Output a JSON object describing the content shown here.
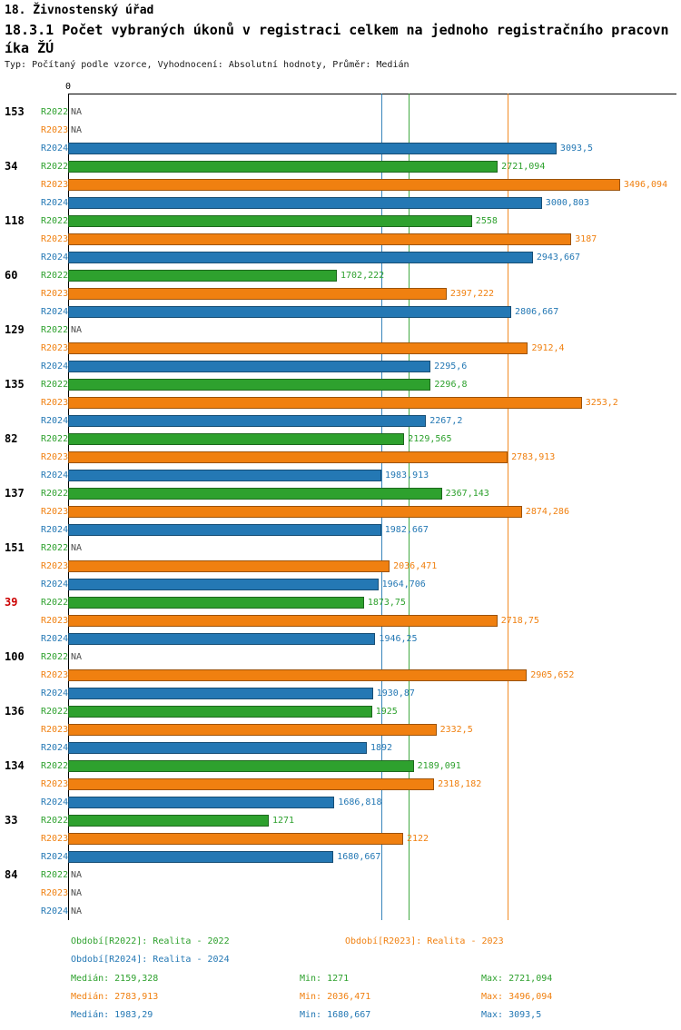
{
  "title": "18. Živnostenský úřad",
  "chart_title": "18.3.1 Počet vybraných úkonů v registraci celkem na jednoho registračního pracovníka ŽÚ",
  "meta": "Typ: Počítaný podle vzorce, Vyhodnocení: Absolutní hodnoty, Průměr: Medián",
  "colors": {
    "r2022": "#2EA12E",
    "r2023": "#F08010",
    "r2024": "#2478B4",
    "highlight": "#CC0000",
    "na": "#4D4D4D",
    "axis": "#000000"
  },
  "chart_data": {
    "type": "bar",
    "orientation": "horizontal",
    "origin_label": "0",
    "xlim": [
      0,
      3853
    ],
    "grid": "median-lines-only",
    "legend_position": "bottom",
    "series": [
      "R2022",
      "R2023",
      "R2024"
    ],
    "series_color_keys": [
      "r2022",
      "r2023",
      "r2024"
    ],
    "groups": [
      {
        "label": "153",
        "highlight": false,
        "values": [
          null,
          null,
          3093.5
        ],
        "displays": [
          "NA",
          "NA",
          "3093,5"
        ]
      },
      {
        "label": "34",
        "highlight": false,
        "values": [
          2721.094,
          3496.094,
          3000.803
        ],
        "displays": [
          "2721,094",
          "3496,094",
          "3000,803"
        ]
      },
      {
        "label": "118",
        "highlight": false,
        "values": [
          2558,
          3187,
          2943.667
        ],
        "displays": [
          "2558",
          "3187",
          "2943,667"
        ]
      },
      {
        "label": "60",
        "highlight": false,
        "values": [
          1702.222,
          2397.222,
          2806.667
        ],
        "displays": [
          "1702,222",
          "2397,222",
          "2806,667"
        ]
      },
      {
        "label": "129",
        "highlight": false,
        "values": [
          null,
          2912.4,
          2295.6
        ],
        "displays": [
          "NA",
          "2912,4",
          "2295,6"
        ]
      },
      {
        "label": "135",
        "highlight": false,
        "values": [
          2296.8,
          3253.2,
          2267.2
        ],
        "displays": [
          "2296,8",
          "3253,2",
          "2267,2"
        ]
      },
      {
        "label": "82",
        "highlight": false,
        "values": [
          2129.565,
          2783.913,
          1983.913
        ],
        "displays": [
          "2129,565",
          "2783,913",
          "1983,913"
        ]
      },
      {
        "label": "137",
        "highlight": false,
        "values": [
          2367.143,
          2874.286,
          1982.667
        ],
        "displays": [
          "2367,143",
          "2874,286",
          "1982,667"
        ]
      },
      {
        "label": "151",
        "highlight": false,
        "values": [
          null,
          2036.471,
          1964.706
        ],
        "displays": [
          "NA",
          "2036,471",
          "1964,706"
        ]
      },
      {
        "label": "39",
        "highlight": true,
        "values": [
          1873.75,
          2718.75,
          1946.25
        ],
        "displays": [
          "1873,75",
          "2718,75",
          "1946,25"
        ]
      },
      {
        "label": "100",
        "highlight": false,
        "values": [
          null,
          2905.652,
          1930.87
        ],
        "displays": [
          "NA",
          "2905,652",
          "1930,87"
        ]
      },
      {
        "label": "136",
        "highlight": false,
        "values": [
          1925,
          2332.5,
          1892
        ],
        "displays": [
          "1925",
          "2332,5",
          "1892"
        ]
      },
      {
        "label": "134",
        "highlight": false,
        "values": [
          2189.091,
          2318.182,
          1686.818
        ],
        "displays": [
          "2189,091",
          "2318,182",
          "1686,818"
        ]
      },
      {
        "label": "33",
        "highlight": false,
        "values": [
          1271,
          2122,
          1680.667
        ],
        "displays": [
          "1271",
          "2122",
          "1680,667"
        ]
      },
      {
        "label": "84",
        "highlight": false,
        "values": [
          null,
          null,
          null
        ],
        "displays": [
          "NA",
          "NA",
          "NA"
        ]
      }
    ],
    "median_lines": [
      {
        "series": "R2022",
        "value": 2159.328,
        "color_key": "r2022"
      },
      {
        "series": "R2023",
        "value": 2783.913,
        "color_key": "r2023"
      },
      {
        "series": "R2024",
        "value": 1983.29,
        "color_key": "r2024"
      }
    ],
    "legend": [
      {
        "label": "Období[R2022]: Realita - 2022",
        "color_key": "r2022"
      },
      {
        "label": "Období[R2023]: Realita - 2023",
        "color_key": "r2023"
      },
      {
        "label": "Období[R2024]: Realita - 2024",
        "color_key": "r2024"
      }
    ],
    "stats": [
      {
        "color_key": "r2022",
        "median": "Medián: 2159,328",
        "min": "Min: 1271",
        "max": "Max: 2721,094"
      },
      {
        "color_key": "r2023",
        "median": "Medián: 2783,913",
        "min": "Min: 2036,471",
        "max": "Max: 3496,094"
      },
      {
        "color_key": "r2024",
        "median": "Medián: 1983,29",
        "min": "Min: 1680,667",
        "max": "Max: 3093,5"
      }
    ]
  }
}
